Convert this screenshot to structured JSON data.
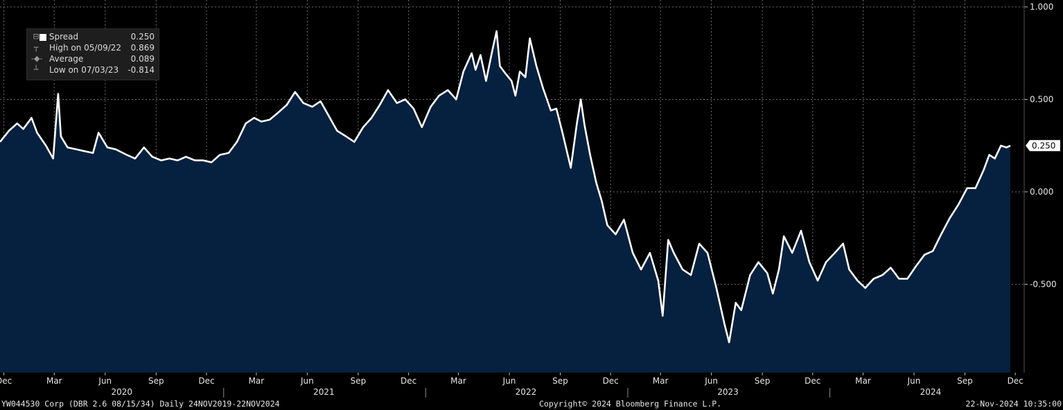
{
  "legend": {
    "series_label": "Spread",
    "series_value": "0.250",
    "high_label": "High on 05/09/22",
    "high_value": "0.869",
    "avg_label": "Average",
    "avg_value": "0.089",
    "low_label": "Low on 07/03/23",
    "low_value": "-0.814"
  },
  "footer": {
    "left": "YW044530 Corp (DBR 2.6 08/15/34)  Daily 24NOV2019-22NOV2024",
    "center": "Copyright© 2024 Bloomberg Finance L.P.",
    "right": "22-Nov-2024 10:35:00"
  },
  "colors": {
    "background": "#000000",
    "area_fill": "#06203f",
    "line": "#ffffff",
    "grid": "#6e6e6e"
  },
  "chart_data": {
    "type": "area",
    "series": [
      {
        "name": "Spread",
        "last_value": 0.25
      }
    ],
    "x_start": "2019-11-24",
    "x_end": "2024-11-22",
    "ylim": [
      -0.95,
      1.0
    ],
    "yticks": [
      1.0,
      0.5,
      0.0,
      -0.5
    ],
    "ytick_labels": [
      "1.000",
      "0.500",
      "0.000",
      "-0.500"
    ],
    "last_value_label": "0.250",
    "month_ticks": [
      {
        "date": "2019-12-01",
        "label": "Dec"
      },
      {
        "date": "2020-03-01",
        "label": "Mar"
      },
      {
        "date": "2020-06-01",
        "label": "Jun"
      },
      {
        "date": "2020-09-01",
        "label": "Sep"
      },
      {
        "date": "2020-12-01",
        "label": "Dec"
      },
      {
        "date": "2021-03-01",
        "label": "Mar"
      },
      {
        "date": "2021-06-01",
        "label": "Jun"
      },
      {
        "date": "2021-09-01",
        "label": "Sep"
      },
      {
        "date": "2021-12-01",
        "label": "Dec"
      },
      {
        "date": "2022-03-01",
        "label": "Mar"
      },
      {
        "date": "2022-06-01",
        "label": "Jun"
      },
      {
        "date": "2022-09-01",
        "label": "Sep"
      },
      {
        "date": "2022-12-01",
        "label": "Dec"
      },
      {
        "date": "2023-03-01",
        "label": "Mar"
      },
      {
        "date": "2023-06-01",
        "label": "Jun"
      },
      {
        "date": "2023-09-01",
        "label": "Sep"
      },
      {
        "date": "2023-12-01",
        "label": "Dec"
      },
      {
        "date": "2024-03-01",
        "label": "Mar"
      },
      {
        "date": "2024-06-01",
        "label": "Jun"
      },
      {
        "date": "2024-09-01",
        "label": "Sep"
      },
      {
        "date": "2024-12-01",
        "label": "Dec"
      }
    ],
    "year_labels": [
      {
        "date": "2020-07-01",
        "label": "2020"
      },
      {
        "date": "2021-07-01",
        "label": "2021"
      },
      {
        "date": "2022-07-01",
        "label": "2022"
      },
      {
        "date": "2023-07-01",
        "label": "2023"
      },
      {
        "date": "2024-07-01",
        "label": "2024"
      }
    ],
    "points": [
      [
        "2019-11-24",
        0.27
      ],
      [
        "2019-12-10",
        0.33
      ],
      [
        "2019-12-25",
        0.37
      ],
      [
        "2020-01-05",
        0.34
      ],
      [
        "2020-01-20",
        0.4
      ],
      [
        "2020-01-30",
        0.32
      ],
      [
        "2020-02-15",
        0.25
      ],
      [
        "2020-02-28",
        0.18
      ],
      [
        "2020-03-08",
        0.53
      ],
      [
        "2020-03-13",
        0.3
      ],
      [
        "2020-03-25",
        0.24
      ],
      [
        "2020-04-10",
        0.23
      ],
      [
        "2020-04-25",
        0.22
      ],
      [
        "2020-05-10",
        0.21
      ],
      [
        "2020-05-20",
        0.32
      ],
      [
        "2020-06-05",
        0.24
      ],
      [
        "2020-06-20",
        0.23
      ],
      [
        "2020-07-10",
        0.2
      ],
      [
        "2020-07-25",
        0.18
      ],
      [
        "2020-08-10",
        0.24
      ],
      [
        "2020-08-25",
        0.19
      ],
      [
        "2020-09-10",
        0.17
      ],
      [
        "2020-09-25",
        0.18
      ],
      [
        "2020-10-10",
        0.17
      ],
      [
        "2020-10-25",
        0.19
      ],
      [
        "2020-11-10",
        0.17
      ],
      [
        "2020-11-25",
        0.17
      ],
      [
        "2020-12-10",
        0.16
      ],
      [
        "2020-12-25",
        0.2
      ],
      [
        "2021-01-10",
        0.21
      ],
      [
        "2021-01-25",
        0.27
      ],
      [
        "2021-02-10",
        0.37
      ],
      [
        "2021-02-25",
        0.4
      ],
      [
        "2021-03-10",
        0.38
      ],
      [
        "2021-03-25",
        0.39
      ],
      [
        "2021-04-10",
        0.43
      ],
      [
        "2021-04-25",
        0.47
      ],
      [
        "2021-05-10",
        0.54
      ],
      [
        "2021-05-25",
        0.48
      ],
      [
        "2021-06-10",
        0.46
      ],
      [
        "2021-06-25",
        0.49
      ],
      [
        "2021-07-10",
        0.41
      ],
      [
        "2021-07-25",
        0.33
      ],
      [
        "2021-08-10",
        0.3
      ],
      [
        "2021-08-25",
        0.27
      ],
      [
        "2021-09-10",
        0.35
      ],
      [
        "2021-09-25",
        0.4
      ],
      [
        "2021-10-10",
        0.47
      ],
      [
        "2021-10-25",
        0.55
      ],
      [
        "2021-11-10",
        0.48
      ],
      [
        "2021-11-25",
        0.5
      ],
      [
        "2021-12-10",
        0.45
      ],
      [
        "2021-12-25",
        0.35
      ],
      [
        "2022-01-10",
        0.46
      ],
      [
        "2022-01-25",
        0.52
      ],
      [
        "2022-02-10",
        0.55
      ],
      [
        "2022-02-25",
        0.5
      ],
      [
        "2022-03-10",
        0.65
      ],
      [
        "2022-03-25",
        0.75
      ],
      [
        "2022-04-01",
        0.66
      ],
      [
        "2022-04-10",
        0.74
      ],
      [
        "2022-04-20",
        0.6
      ],
      [
        "2022-05-01",
        0.76
      ],
      [
        "2022-05-09",
        0.869
      ],
      [
        "2022-05-15",
        0.68
      ],
      [
        "2022-05-25",
        0.64
      ],
      [
        "2022-06-05",
        0.6
      ],
      [
        "2022-06-12",
        0.52
      ],
      [
        "2022-06-20",
        0.65
      ],
      [
        "2022-06-30",
        0.62
      ],
      [
        "2022-07-08",
        0.83
      ],
      [
        "2022-07-20",
        0.68
      ],
      [
        "2022-08-01",
        0.56
      ],
      [
        "2022-08-15",
        0.44
      ],
      [
        "2022-08-25",
        0.45
      ],
      [
        "2022-09-05",
        0.32
      ],
      [
        "2022-09-20",
        0.13
      ],
      [
        "2022-10-01",
        0.37
      ],
      [
        "2022-10-08",
        0.5
      ],
      [
        "2022-10-15",
        0.36
      ],
      [
        "2022-10-25",
        0.2
      ],
      [
        "2022-11-05",
        0.05
      ],
      [
        "2022-11-15",
        -0.05
      ],
      [
        "2022-11-25",
        -0.18
      ],
      [
        "2022-12-10",
        -0.23
      ],
      [
        "2022-12-25",
        -0.15
      ],
      [
        "2023-01-10",
        -0.33
      ],
      [
        "2023-01-25",
        -0.42
      ],
      [
        "2023-02-10",
        -0.33
      ],
      [
        "2023-02-25",
        -0.48
      ],
      [
        "2023-03-05",
        -0.67
      ],
      [
        "2023-03-15",
        -0.26
      ],
      [
        "2023-03-25",
        -0.33
      ],
      [
        "2023-04-10",
        -0.42
      ],
      [
        "2023-04-25",
        -0.45
      ],
      [
        "2023-05-10",
        -0.28
      ],
      [
        "2023-05-25",
        -0.33
      ],
      [
        "2023-06-10",
        -0.52
      ],
      [
        "2023-06-25",
        -0.72
      ],
      [
        "2023-07-03",
        -0.814
      ],
      [
        "2023-07-15",
        -0.6
      ],
      [
        "2023-07-25",
        -0.64
      ],
      [
        "2023-08-10",
        -0.45
      ],
      [
        "2023-08-25",
        -0.38
      ],
      [
        "2023-09-10",
        -0.44
      ],
      [
        "2023-09-20",
        -0.55
      ],
      [
        "2023-10-01",
        -0.42
      ],
      [
        "2023-10-10",
        -0.24
      ],
      [
        "2023-10-25",
        -0.33
      ],
      [
        "2023-11-10",
        -0.21
      ],
      [
        "2023-11-25",
        -0.38
      ],
      [
        "2023-12-10",
        -0.48
      ],
      [
        "2023-12-25",
        -0.38
      ],
      [
        "2024-01-10",
        -0.33
      ],
      [
        "2024-01-25",
        -0.28
      ],
      [
        "2024-02-05",
        -0.42
      ],
      [
        "2024-02-20",
        -0.48
      ],
      [
        "2024-03-05",
        -0.52
      ],
      [
        "2024-03-20",
        -0.47
      ],
      [
        "2024-04-05",
        -0.45
      ],
      [
        "2024-04-20",
        -0.41
      ],
      [
        "2024-05-05",
        -0.47
      ],
      [
        "2024-05-20",
        -0.47
      ],
      [
        "2024-06-05",
        -0.4
      ],
      [
        "2024-06-20",
        -0.34
      ],
      [
        "2024-07-05",
        -0.32
      ],
      [
        "2024-07-20",
        -0.23
      ],
      [
        "2024-08-05",
        -0.14
      ],
      [
        "2024-08-20",
        -0.07
      ],
      [
        "2024-09-05",
        0.02
      ],
      [
        "2024-09-20",
        0.02
      ],
      [
        "2024-10-05",
        0.12
      ],
      [
        "2024-10-15",
        0.2
      ],
      [
        "2024-10-25",
        0.18
      ],
      [
        "2024-11-05",
        0.25
      ],
      [
        "2024-11-15",
        0.24
      ],
      [
        "2024-11-22",
        0.25
      ]
    ]
  }
}
